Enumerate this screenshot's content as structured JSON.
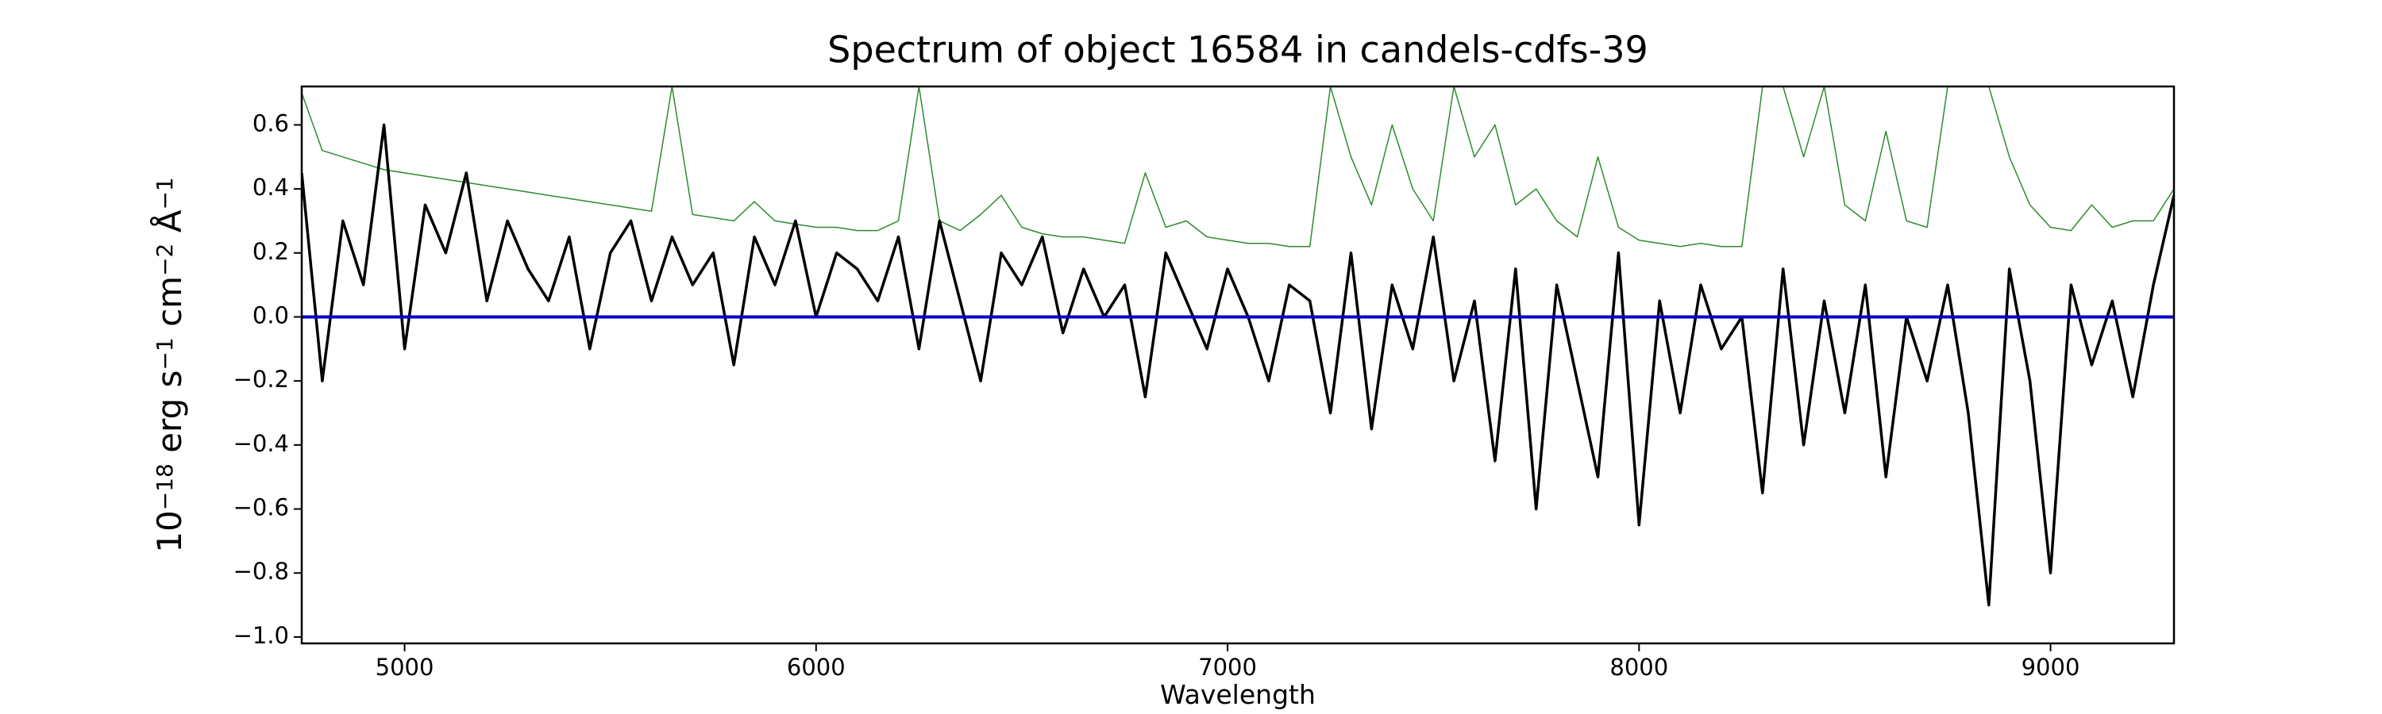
{
  "chart_data": {
    "type": "line",
    "title": "Spectrum of object 16584 in candels-cdfs-39",
    "xlabel": "Wavelength",
    "ylabel": [
      "10",
      "−18",
      " erg s",
      "−1",
      " cm",
      "−2",
      " Å",
      "−1"
    ],
    "xlim": [
      4750,
      9300
    ],
    "ylim": [
      -1.02,
      0.72
    ],
    "xticks": [
      5000,
      6000,
      7000,
      8000,
      9000
    ],
    "yticks": [
      {
        "value": -1.0,
        "label": "−1.0"
      },
      {
        "value": -0.8,
        "label": "−0.8"
      },
      {
        "value": -0.6,
        "label": "−0.6"
      },
      {
        "value": -0.4,
        "label": "−0.4"
      },
      {
        "value": -0.2,
        "label": "−0.2"
      },
      {
        "value": 0.0,
        "label": "0.0"
      },
      0.2,
      0.4,
      0.6
    ],
    "x": [
      4750,
      4800,
      4850,
      4900,
      4950,
      5000,
      5050,
      5100,
      5150,
      5200,
      5250,
      5300,
      5350,
      5400,
      5450,
      5500,
      5550,
      5600,
      5650,
      5700,
      5750,
      5800,
      5850,
      5900,
      5950,
      6000,
      6050,
      6100,
      6150,
      6200,
      6250,
      6300,
      6350,
      6400,
      6450,
      6500,
      6550,
      6600,
      6650,
      6700,
      6750,
      6800,
      6850,
      6900,
      6950,
      7000,
      7050,
      7100,
      7150,
      7200,
      7250,
      7300,
      7350,
      7400,
      7450,
      7500,
      7550,
      7600,
      7650,
      7700,
      7750,
      7800,
      7850,
      7900,
      7950,
      8000,
      8050,
      8100,
      8150,
      8200,
      8250,
      8300,
      8350,
      8400,
      8450,
      8500,
      8550,
      8600,
      8650,
      8700,
      8750,
      8800,
      8850,
      8900,
      8950,
      9000,
      9050,
      9100,
      9150,
      9200,
      9250,
      9300
    ],
    "series": [
      {
        "color": "#2e8b2e",
        "width": 1.5,
        "values": [
          0.7,
          0.52,
          0.5,
          0.48,
          0.46,
          0.45,
          0.44,
          0.43,
          0.42,
          0.41,
          0.4,
          0.39,
          0.38,
          0.37,
          0.36,
          0.35,
          0.34,
          0.33,
          0.72,
          0.32,
          0.31,
          0.3,
          0.36,
          0.3,
          0.29,
          0.28,
          0.28,
          0.27,
          0.27,
          0.3,
          0.72,
          0.3,
          0.27,
          0.32,
          0.38,
          0.28,
          0.26,
          0.25,
          0.25,
          0.24,
          0.23,
          0.45,
          0.28,
          0.3,
          0.25,
          0.24,
          0.23,
          0.23,
          0.22,
          0.22,
          0.72,
          0.5,
          0.35,
          0.6,
          0.4,
          0.3,
          0.72,
          0.5,
          0.6,
          0.35,
          0.4,
          0.3,
          0.25,
          0.5,
          0.28,
          0.24,
          0.23,
          0.22,
          0.23,
          0.22,
          0.22,
          0.72,
          0.72,
          0.5,
          0.72,
          0.35,
          0.3,
          0.58,
          0.3,
          0.28,
          0.72,
          0.72,
          0.72,
          0.5,
          0.35,
          0.28,
          0.27,
          0.35,
          0.28,
          0.3,
          0.3,
          0.4
        ]
      },
      {
        "color": "#000000",
        "width": 3.5,
        "values": [
          0.45,
          -0.2,
          0.3,
          0.1,
          0.6,
          -0.1,
          0.35,
          0.2,
          0.45,
          0.05,
          0.3,
          0.15,
          0.05,
          0.25,
          -0.1,
          0.2,
          0.3,
          0.05,
          0.25,
          0.1,
          0.2,
          -0.15,
          0.25,
          0.1,
          0.3,
          0.0,
          0.2,
          0.15,
          0.05,
          0.25,
          -0.1,
          0.3,
          0.05,
          -0.2,
          0.2,
          0.1,
          0.25,
          -0.05,
          0.15,
          0.0,
          0.1,
          -0.25,
          0.2,
          0.05,
          -0.1,
          0.15,
          0.0,
          -0.2,
          0.1,
          0.05,
          -0.3,
          0.2,
          -0.35,
          0.1,
          -0.1,
          0.25,
          -0.2,
          0.05,
          -0.45,
          0.15,
          -0.6,
          0.1,
          -0.2,
          -0.5,
          0.2,
          -0.65,
          0.05,
          -0.3,
          0.1,
          -0.1,
          0.0,
          -0.55,
          0.15,
          -0.4,
          0.05,
          -0.3,
          0.1,
          -0.5,
          0.0,
          -0.2,
          0.1,
          -0.3,
          -0.9,
          0.15,
          -0.2,
          -0.8,
          0.1,
          -0.15,
          0.05,
          -0.25,
          0.1,
          0.38
        ]
      },
      {
        "color": "#0000cc",
        "width": 4,
        "x": [
          4750,
          9300
        ],
        "values": [
          0,
          0
        ]
      }
    ]
  }
}
